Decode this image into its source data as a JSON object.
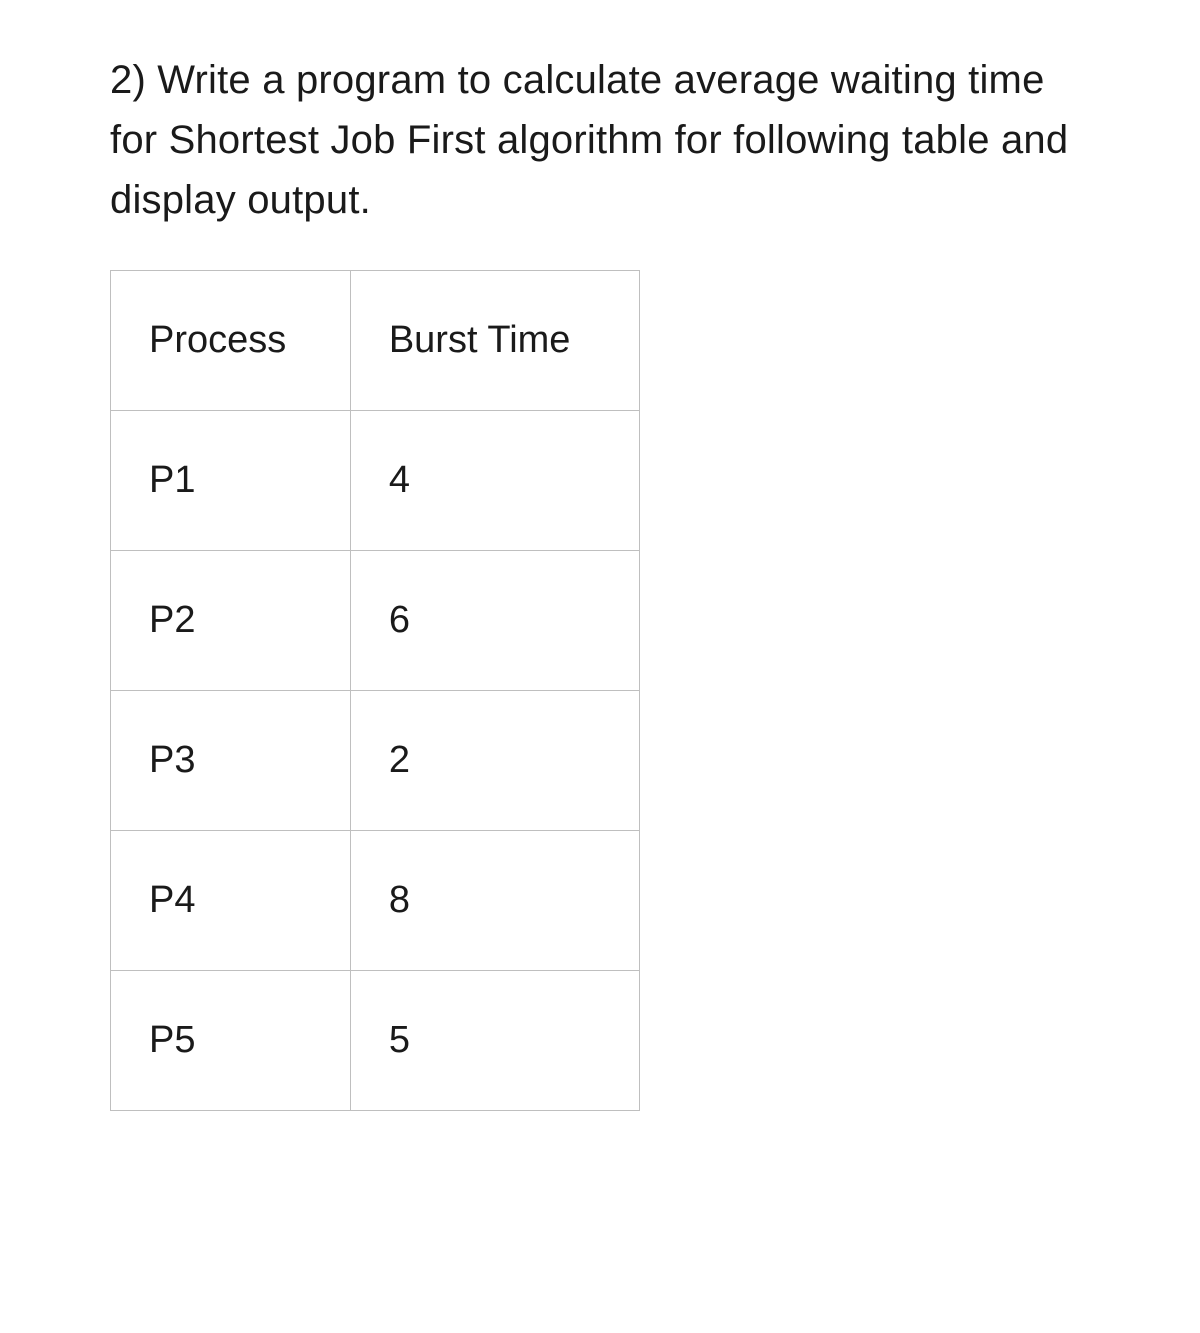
{
  "question": {
    "text": "2) Write a program to calculate average waiting time for Shortest Job First algorithm for following table and display output."
  },
  "table": {
    "type": "table",
    "columns": [
      "Process",
      "Burst Time"
    ],
    "rows": [
      [
        "P1",
        "4"
      ],
      [
        "P2",
        "6"
      ],
      [
        "P3",
        "2"
      ],
      [
        "P4",
        "8"
      ],
      [
        "P5",
        "5"
      ]
    ],
    "border_color": "#bfbfbf",
    "background_color": "#ffffff",
    "text_color": "#1a1a1a",
    "font_size": 38,
    "cell_padding": 48
  }
}
